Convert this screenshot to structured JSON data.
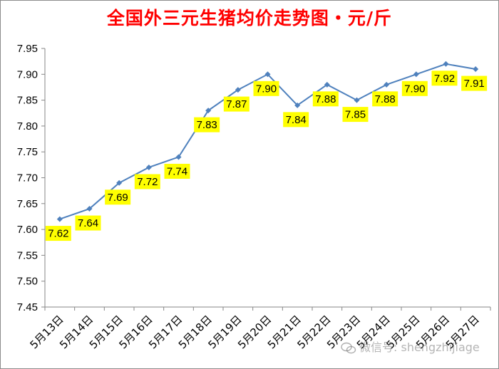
{
  "chart_data": {
    "type": "line",
    "title": "全国外三元生猪均价走势图・元/斤",
    "categories": [
      "5月13日",
      "5月14日",
      "5月15日",
      "5月16日",
      "5月17日",
      "5月18日",
      "5月19日",
      "5月20日",
      "5月21日",
      "5月22日",
      "5月23日",
      "5月24日",
      "5月25日",
      "5月26日",
      "5月27日"
    ],
    "series": [
      {
        "values": [
          7.62,
          7.64,
          7.69,
          7.72,
          7.74,
          7.83,
          7.87,
          7.9,
          7.84,
          7.88,
          7.85,
          7.88,
          7.9,
          7.92,
          7.91
        ]
      }
    ],
    "data_labels": [
      "7.62",
      "7.64",
      "7.69",
      "7.72",
      "7.74",
      "7.83",
      "7.87",
      "7.90",
      "7.84",
      "7.88",
      "7.85",
      "7.88",
      "7.90",
      "7.92",
      "7.91"
    ],
    "ylim": [
      7.45,
      7.95
    ],
    "yticks": [
      "7.45",
      "7.50",
      "7.55",
      "7.60",
      "7.65",
      "7.70",
      "7.75",
      "7.80",
      "7.85",
      "7.90",
      "7.95"
    ],
    "xlabel": "",
    "ylabel": "",
    "grid": false,
    "legend": "none",
    "line_color": "#4f81bd",
    "label_bg_color": "#ffff00"
  },
  "watermark": {
    "icon": "wechat-icon",
    "text": "微信号: shengzhijiage"
  }
}
